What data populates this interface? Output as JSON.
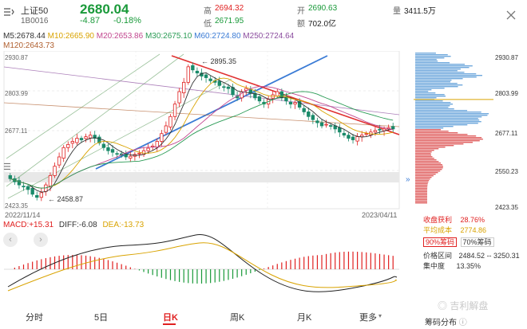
{
  "header": {
    "name": "上证50",
    "code": "1B0016",
    "price": "2680.04",
    "change": "-4.87",
    "change_pct": "-0.18%",
    "high_label": "高",
    "high": "2694.32",
    "low_label": "低",
    "low": "2671.95",
    "open_label": "开",
    "open": "2690.63",
    "amount_label": "额",
    "amount": "702.0亿",
    "volume_label": "量",
    "volume": "3411.5万"
  },
  "ma_legend": {
    "m5": "M5:2678.44",
    "m10": "M10:2665.90",
    "m20": "M20:2653.86",
    "m30": "M30:2675.10",
    "m60": "M60:2724.80",
    "m250": "M250:2724.64",
    "m120": "M120:2643.73"
  },
  "price_axis": [
    "2930.87",
    "2803.99",
    "2677.11",
    "2550.23",
    "2423.35"
  ],
  "annotations": {
    "peak": "2895.35",
    "trough": "2458.87"
  },
  "date_axis": {
    "start": "2022/11/14",
    "end": "2023/04/11"
  },
  "macd": {
    "macd": "MACD:+15.31",
    "diff": "DIFF:-6.08",
    "dea": "DEA:-13.73"
  },
  "chip": {
    "profit_label": "收盘获利",
    "profit": "28.76%",
    "cost_label": "平均成本",
    "cost": "2774.86",
    "chip90": "90%筹码",
    "chip70": "70%筹码",
    "range_label": "价格区间",
    "range": "2484.52 -- 3250.31",
    "conc_label": "集中度",
    "conc": "13.35%",
    "dist_label": "筹码分布"
  },
  "tabs": [
    "分时",
    "5日",
    "日K",
    "周K",
    "月K",
    "更多"
  ],
  "watermark": "吉利解盘",
  "colors": {
    "up": "#e02020",
    "down": "#1a9a3a",
    "blue": "#3a7bd5"
  },
  "chart_data": {
    "type": "candlestick",
    "x_range": [
      "2022/11/14",
      "2023/04/11"
    ],
    "ylim": [
      2423.35,
      2930.87
    ],
    "y_ticks": [
      2930.87,
      2803.99,
      2677.11,
      2550.23,
      2423.35
    ],
    "close": [
      2520,
      2510,
      2500,
      2495,
      2485,
      2470,
      2460,
      2475,
      2500,
      2530,
      2560,
      2590,
      2620,
      2630,
      2640,
      2650,
      2645,
      2655,
      2660,
      2650,
      2635,
      2620,
      2610,
      2605,
      2600,
      2595,
      2590,
      2592,
      2598,
      2602,
      2610,
      2618,
      2625,
      2640,
      2665,
      2690,
      2720,
      2760,
      2800,
      2830,
      2880,
      2870,
      2860,
      2850,
      2845,
      2835,
      2830,
      2820,
      2815,
      2810,
      2790,
      2780,
      2800,
      2810,
      2795,
      2780,
      2770,
      2760,
      2775,
      2790,
      2800,
      2780,
      2770,
      2760,
      2765,
      2750,
      2735,
      2720,
      2710,
      2700,
      2690,
      2695,
      2690,
      2680,
      2670,
      2660,
      2650,
      2645,
      2655,
      2660,
      2665,
      2670,
      2675,
      2678,
      2680,
      2684,
      2680
    ]
  }
}
